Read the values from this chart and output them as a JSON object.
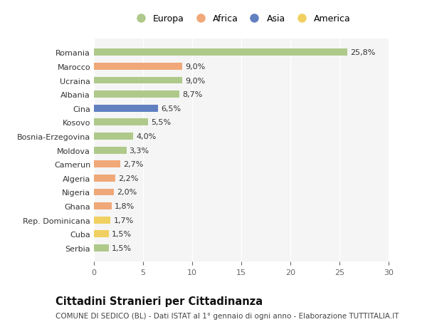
{
  "countries": [
    "Romania",
    "Marocco",
    "Ucraina",
    "Albania",
    "Cina",
    "Kosovo",
    "Bosnia-Erzegovina",
    "Moldova",
    "Camerun",
    "Algeria",
    "Nigeria",
    "Ghana",
    "Rep. Dominicana",
    "Cuba",
    "Serbia"
  ],
  "values": [
    25.8,
    9.0,
    9.0,
    8.7,
    6.5,
    5.5,
    4.0,
    3.3,
    2.7,
    2.2,
    2.0,
    1.8,
    1.7,
    1.5,
    1.5
  ],
  "labels": [
    "25,8%",
    "9,0%",
    "9,0%",
    "8,7%",
    "6,5%",
    "5,5%",
    "4,0%",
    "3,3%",
    "2,7%",
    "2,2%",
    "2,0%",
    "1,8%",
    "1,7%",
    "1,5%",
    "1,5%"
  ],
  "continents": [
    "Europa",
    "Africa",
    "Europa",
    "Europa",
    "Asia",
    "Europa",
    "Europa",
    "Europa",
    "Africa",
    "Africa",
    "Africa",
    "Africa",
    "America",
    "America",
    "Europa"
  ],
  "continent_colors": {
    "Europa": "#aec98a",
    "Africa": "#f0a878",
    "Asia": "#6080c0",
    "America": "#f0d060"
  },
  "legend_order": [
    "Europa",
    "Africa",
    "Asia",
    "America"
  ],
  "title": "Cittadini Stranieri per Cittadinanza",
  "subtitle": "COMUNE DI SEDICO (BL) - Dati ISTAT al 1° gennaio di ogni anno - Elaborazione TUTTITALIA.IT",
  "xlim": [
    0,
    30
  ],
  "xticks": [
    0,
    5,
    10,
    15,
    20,
    25,
    30
  ],
  "bg_color": "#ffffff",
  "plot_bg_color": "#f5f5f5",
  "grid_color": "#ffffff",
  "bar_height": 0.5,
  "label_fontsize": 8.0,
  "tick_fontsize": 8.0,
  "title_fontsize": 10.5,
  "subtitle_fontsize": 7.5
}
